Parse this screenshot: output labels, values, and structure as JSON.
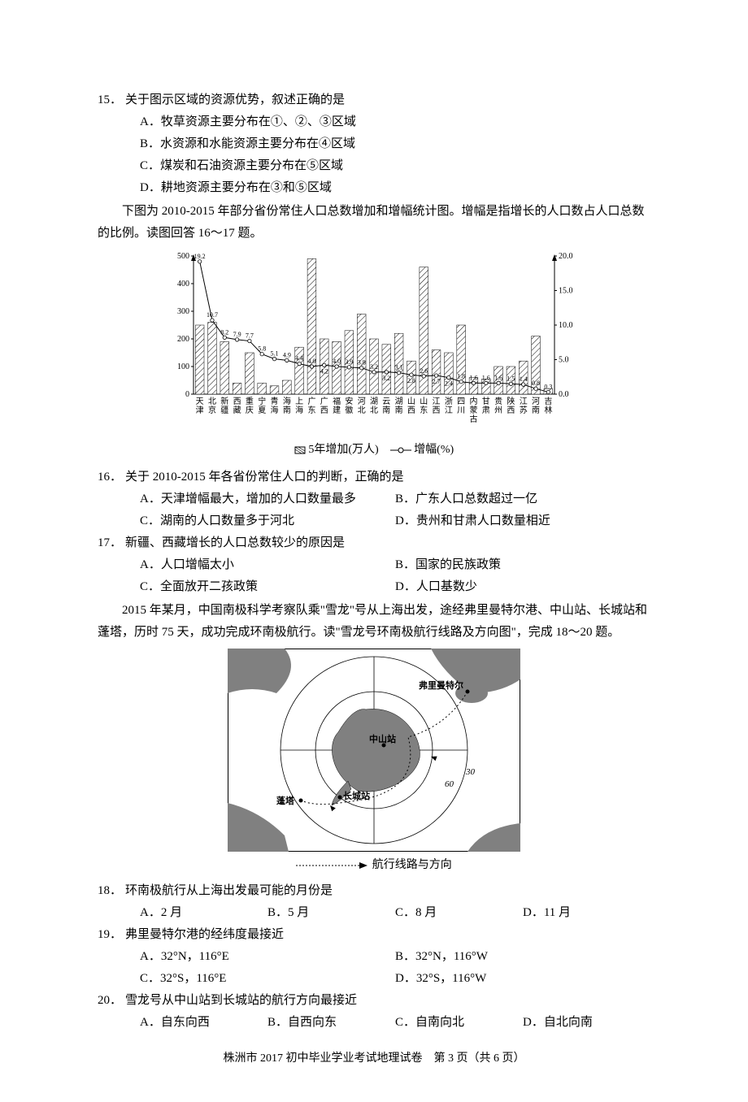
{
  "q15": {
    "num": "15．",
    "stem": "关于图示区域的资源优势，叙述正确的是",
    "A": "A．牧草资源主要分布在①、②、③区域",
    "B": "B．水资源和水能资源主要分布在④区域",
    "C": "C．煤炭和石油资源主要分布在⑤区域",
    "D": "D．耕地资源主要分布在③和⑤区域"
  },
  "intro1": "下图为 2010-2015 年部分省份常住人口总数增加和增幅统计图。增幅是指增长的人口数占人口总数的比例。读图回答 16～17 题。",
  "chart": {
    "type": "bar+line",
    "left_ylabel_max": 500,
    "left_yticks": [
      0,
      100,
      200,
      300,
      400,
      500
    ],
    "right_ylabel_max": 20.0,
    "right_yticks": [
      0.0,
      5.0,
      10.0,
      15.0,
      20.0
    ],
    "bar_color": "#888888",
    "bar_hatch": true,
    "line_color": "#000000",
    "marker": "o",
    "marker_fill": "#ffffff",
    "bg": "#ffffff",
    "provinces": [
      "天津",
      "北京",
      "新疆",
      "西藏",
      "重庆",
      "宁夏",
      "青海",
      "海南",
      "上海",
      "广东",
      "广西",
      "福建",
      "安徽",
      "河北",
      "湖北",
      "云南",
      "湖南",
      "山西",
      "山东",
      "江西",
      "浙江",
      "四川",
      "内蒙古",
      "甘肃",
      "贵州",
      "陕西",
      "江苏",
      "河南",
      "吉林"
    ],
    "bars": [
      250,
      260,
      190,
      40,
      150,
      40,
      30,
      50,
      170,
      490,
      200,
      190,
      230,
      290,
      200,
      180,
      220,
      120,
      460,
      160,
      150,
      250,
      60,
      55,
      100,
      100,
      120,
      210,
      20
    ],
    "pct": [
      19.2,
      10.7,
      8.2,
      7.9,
      7.7,
      5.8,
      5.1,
      4.9,
      4.4,
      4.0,
      4.2,
      4.0,
      3.9,
      3.8,
      3.2,
      3.2,
      3.1,
      2.8,
      2.6,
      2.7,
      2.4,
      1.8,
      1.6,
      1.6,
      1.6,
      1.5,
      1.4,
      0.8,
      0.3
    ],
    "pct_labels": [
      "19.2",
      "10.7",
      "8.2",
      "7.9",
      "7.7",
      "5.8",
      "5.1",
      "4.9",
      "4.4",
      "4.0",
      "",
      "4.0",
      "3.9",
      "3.8",
      "3.2",
      "",
      "3.1",
      "",
      "2.6",
      "",
      "",
      "1.8",
      "1.6",
      "1.6",
      "1.6",
      "1.5",
      "1.4",
      "0.8",
      "0.3"
    ],
    "extra_labels": [
      {
        "i": 10,
        "v": "4.2"
      },
      {
        "i": 15,
        "v": "3.2"
      },
      {
        "i": 17,
        "v": "2.8"
      },
      {
        "i": 19,
        "v": "2.7"
      },
      {
        "i": 20,
        "v": "2.4"
      }
    ],
    "legend_bar": "5年增加(万人)",
    "legend_line": "增幅(%)"
  },
  "chart_legend_text": "☒5年增加(万人)　—○— 增幅(%)",
  "q16": {
    "num": "16．",
    "stem": "关于 2010-2015 年各省份常住人口的判断，正确的是",
    "A": "A．天津增幅最大，增加的人口数量最多",
    "B": "B．广东人口总数超过一亿",
    "C": "C．湖南的人口数量多于河北",
    "D": "D．贵州和甘肃人口数量相近"
  },
  "q17": {
    "num": "17．",
    "stem": "新疆、西藏增长的人口总数较少的原因是",
    "A": "A．人口增幅太小",
    "B": "B．国家的民族政策",
    "C": "C．全面放开二孩政策",
    "D": "D．人口基数少"
  },
  "intro2": "2015 年某月，中国南极科学考察队乘\"雪龙\"号从上海出发，途经弗里曼特尔港、中山站、长城站和蓬塔，历时 75 天，成功完成环南极航行。读\"雪龙号环南极航行线路及方向图\"，完成 18～20 题。",
  "map": {
    "bg": "#ffffff",
    "land": "#808080",
    "line": "#000000",
    "dash_style": "2,3",
    "labels": {
      "fremantle": "弗里曼特尔",
      "zhongshan": "中山站",
      "changcheng": "长城站",
      "pengta": "蓬塔",
      "lat30": "30",
      "lat60": "60"
    },
    "legend_text": "航行线路与方向"
  },
  "map_legend_prefix": "┈┈┈┈┈►",
  "q18": {
    "num": "18．",
    "stem": "环南极航行从上海出发最可能的月份是",
    "A": "A．2 月",
    "B": "B．5 月",
    "C": "C．8 月",
    "D": "D．11 月"
  },
  "q19": {
    "num": "19．",
    "stem": "弗里曼特尔港的经纬度最接近",
    "A": "A．32°N，116°E",
    "B": "B．32°N，116°W",
    "C": "C．32°S，116°E",
    "D": "D．32°S，116°W"
  },
  "q20": {
    "num": "20．",
    "stem": "雪龙号从中山站到长城站的航行方向最接近",
    "A": "A．自东向西",
    "B": "B．自西向东",
    "C": "C．自南向北",
    "D": "D．自北向南"
  },
  "footer": "株洲市 2017 初中毕业学业考试地理试卷　第 3 页（共 6 页）"
}
